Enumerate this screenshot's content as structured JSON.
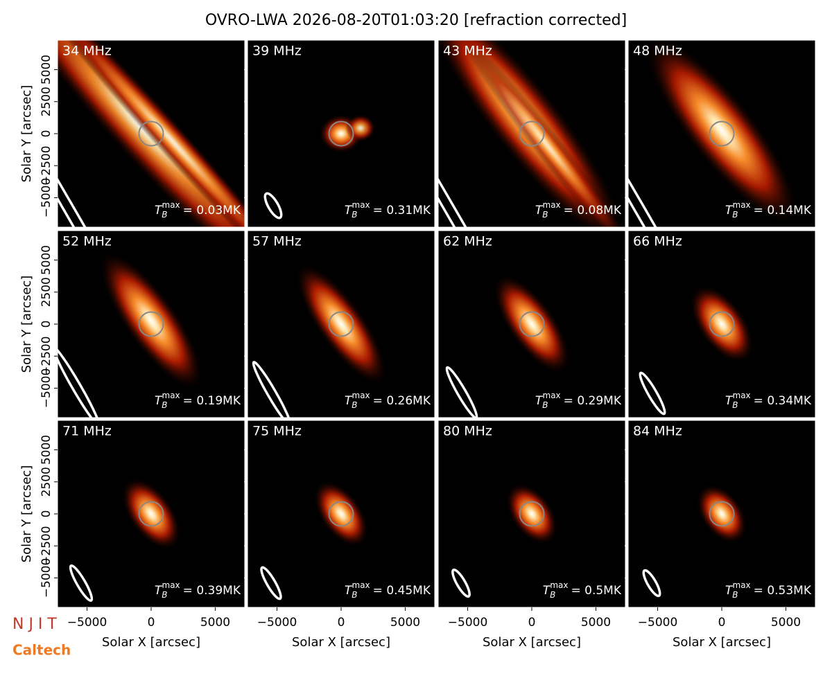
{
  "title": "OVRO-LWA 2026-08-20T01:03:20 [refraction corrected]",
  "xlabel": "Solar X [arcsec]",
  "ylabel": "Solar Y [arcsec]",
  "xlim": [
    -7300,
    7300
  ],
  "ylim": [
    -7300,
    7300
  ],
  "xticks": [
    {
      "value": -5000,
      "label": "−5000"
    },
    0,
    5000
  ],
  "yticks": [
    {
      "value": -5000,
      "label": "−5000"
    },
    {
      "value": -2500,
      "label": "−2500"
    },
    0,
    2500,
    5000
  ],
  "tb_symbol": "T",
  "tb_subscript": "B",
  "tb_superscript": "max",
  "logos": [
    "N J I T",
    "Caltech"
  ],
  "panels": [
    {
      "freq": "34 MHz",
      "tb": "= 0.03MK"
    },
    {
      "freq": "39 MHz",
      "tb": "= 0.31MK"
    },
    {
      "freq": "43 MHz",
      "tb": "= 0.08MK"
    },
    {
      "freq": "48 MHz",
      "tb": "= 0.14MK"
    },
    {
      "freq": "52 MHz",
      "tb": "= 0.19MK"
    },
    {
      "freq": "57 MHz",
      "tb": "= 0.26MK"
    },
    {
      "freq": "62 MHz",
      "tb": "= 0.29MK"
    },
    {
      "freq": "66 MHz",
      "tb": "= 0.34MK"
    },
    {
      "freq": "71 MHz",
      "tb": "= 0.39MK"
    },
    {
      "freq": "75 MHz",
      "tb": "= 0.45MK"
    },
    {
      "freq": "80 MHz",
      "tb": "= 0.5MK"
    },
    {
      "freq": "84 MHz",
      "tb": "= 0.53MK"
    }
  ]
}
